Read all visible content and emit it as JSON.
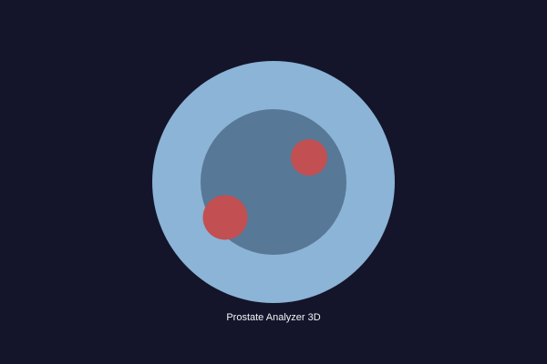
{
  "app": {
    "title": "Prostate Analyzer 3D"
  },
  "model": {
    "outer_zone": {
      "name": "outer-capsule",
      "color": "#8bb4d6"
    },
    "inner_zone": {
      "name": "inner-gland",
      "color": "#577896"
    },
    "lesions": [
      {
        "name": "lesion-upper-right",
        "color": "#c24f52"
      },
      {
        "name": "lesion-lower-left",
        "color": "#c24f52"
      }
    ]
  },
  "colors": {
    "background": "#14152a",
    "caption_text": "#f2f4f8"
  }
}
